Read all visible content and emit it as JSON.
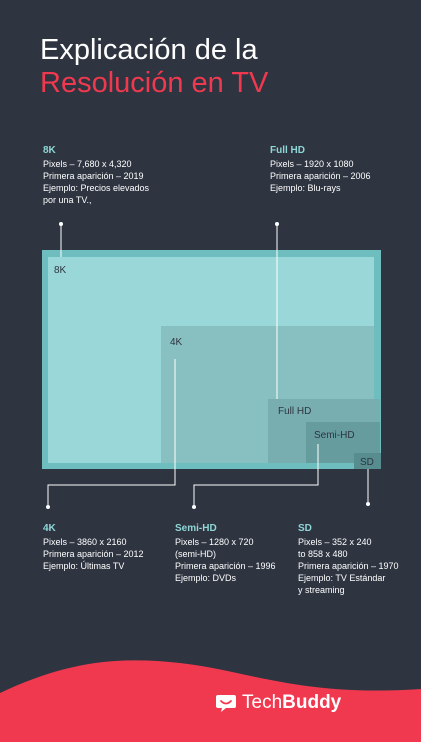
{
  "title": {
    "line1": "Explicación de la",
    "line2": "Resolución en TV"
  },
  "colors": {
    "background": "#2e3440",
    "accent_red": "#f0394f",
    "accent_teal": "#8fd7d6"
  },
  "resolutions": {
    "k8": {
      "box_label": "8K",
      "heading": "8K",
      "lines": [
        "Pixels – 7,680 x 4,320",
        "Primera aparición – 2019",
        "Ejemplo: Precios elevados",
        "por una TV.,"
      ]
    },
    "fullhd": {
      "box_label": "Full HD",
      "heading": "Full HD",
      "lines": [
        "Pixels – 1920 x 1080",
        "Primera aparición – 2006",
        "Ejemplo: Blu-rays"
      ]
    },
    "k4": {
      "box_label": "4K",
      "heading": "4K",
      "lines": [
        "Pixels – 3860 x 2160",
        "Primera aparición – 2012",
        "Ejemplo: Últimas TV"
      ]
    },
    "semihd": {
      "box_label": "Semi-HD",
      "heading": "Semi-HD",
      "lines": [
        "Pixels – 1280 x 720",
        "(semi-HD)",
        "Primera aparición – 1996",
        "Ejemplo: DVDs"
      ]
    },
    "sd": {
      "box_label": "SD",
      "heading": "SD",
      "lines": [
        "Pixels – 352 x 240",
        "to 858 x 480",
        "Primera aparición – 1970",
        "Ejemplo: TV Estándar",
        "y streaming"
      ]
    }
  },
  "footer": {
    "brand_part1": "Tech",
    "brand_part2": "Buddy",
    "logo_icon": "techbuddy-chat-icon"
  }
}
